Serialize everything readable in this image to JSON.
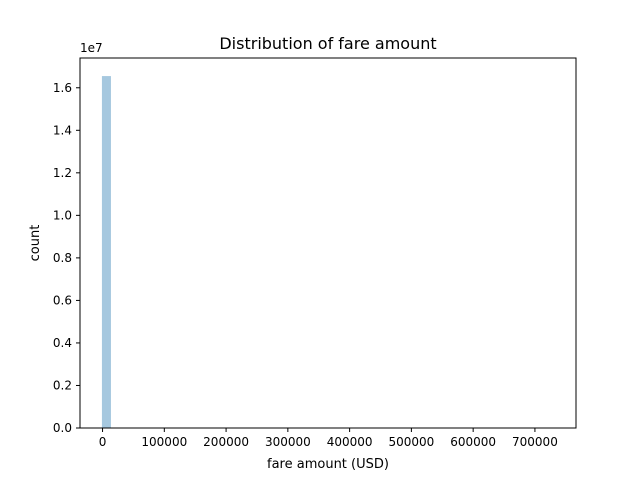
{
  "chart_data": {
    "type": "bar",
    "title": "Distribution of fare amount",
    "xlabel": "fare amount (USD)",
    "ylabel": "count",
    "y_offset_text": "1e7",
    "xlim": [
      -36500,
      766500
    ],
    "ylim": [
      0,
      17400000
    ],
    "x_ticks": [
      0,
      100000,
      200000,
      300000,
      400000,
      500000,
      600000,
      700000
    ],
    "x_tick_labels": [
      "0",
      "100000",
      "200000",
      "300000",
      "400000",
      "500000",
      "600000",
      "700000"
    ],
    "y_ticks": [
      0,
      2000000,
      4000000,
      6000000,
      8000000,
      10000000,
      12000000,
      14000000,
      16000000
    ],
    "y_tick_labels": [
      "0.0",
      "0.2",
      "0.4",
      "0.6",
      "0.8",
      "1.0",
      "1.2",
      "1.4",
      "1.6"
    ],
    "bins": [
      {
        "x0": -1000,
        "x1": 13600,
        "count": 16550000
      }
    ],
    "bar_color": "#a6c8df",
    "grid": false,
    "legend": "none"
  }
}
